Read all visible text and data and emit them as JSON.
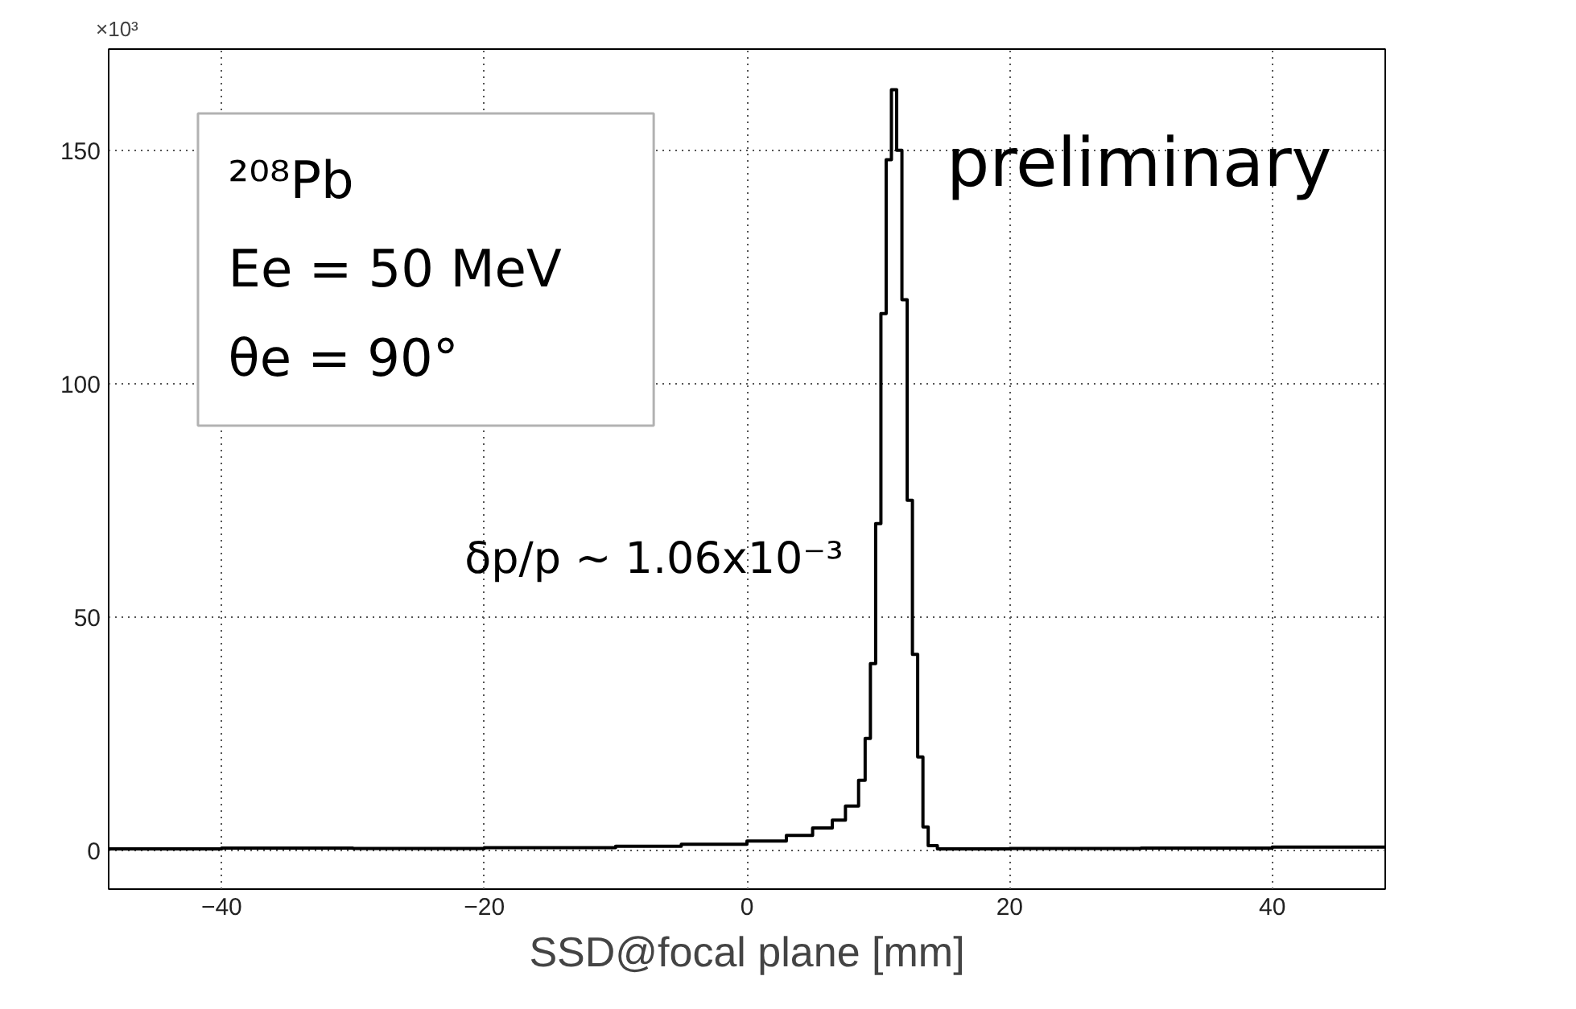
{
  "chart_data": {
    "type": "histogram",
    "xlabel": "SSD@focal plane [mm]",
    "bins": [
      -48.6,
      -40,
      -30,
      -20,
      -10,
      -5,
      0,
      3,
      5,
      6.5,
      7.5,
      8.5,
      9.0,
      9.4,
      9.8,
      10.2,
      10.6,
      11.0,
      11.4,
      11.8,
      12.2,
      12.6,
      13.0,
      13.4,
      13.8,
      14.5,
      20,
      30,
      40,
      48.6
    ],
    "values": [
      0.3,
      0.5,
      0.4,
      0.6,
      0.9,
      1.3,
      2.0,
      3.2,
      4.8,
      6.5,
      9.5,
      15,
      24,
      40,
      70,
      115,
      148,
      163,
      150,
      118,
      75,
      42,
      20,
      5,
      1.0,
      0.3,
      0.4,
      0.5,
      0.7
    ],
    "color": "#000000",
    "xlim": [
      -48.6,
      48.6
    ],
    "ylim": [
      -8.3,
      171.7
    ],
    "xticks": [
      {
        "value": -40,
        "label": "−40"
      },
      {
        "value": -20,
        "label": "−20"
      },
      0,
      20,
      40
    ],
    "yticks": [
      0,
      50,
      100,
      150
    ],
    "grid": true,
    "line_style": "solid",
    "annotations": [
      "×10³",
      "²⁰⁸Pb",
      "Ee = 50 MeV",
      "θe = 90°",
      "δp/p ~ 1.06x10⁻³",
      "preliminary"
    ]
  }
}
